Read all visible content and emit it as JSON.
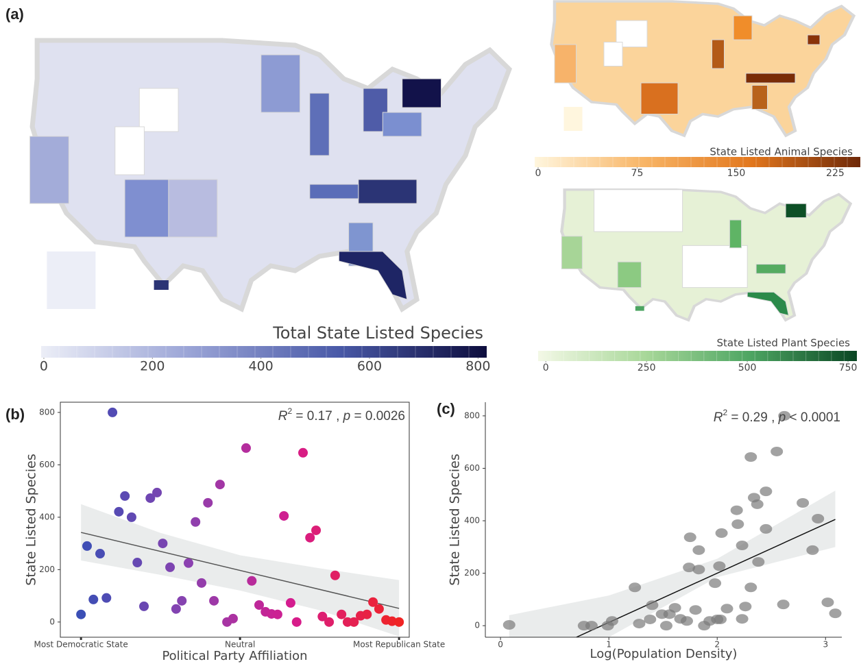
{
  "chart_data": [
    {
      "type": "colorbar",
      "label": "(a)",
      "title": "Total State Listed Species",
      "xlim": [
        -5,
        816
      ],
      "xticks": [
        0,
        200,
        400,
        600,
        800
      ],
      "colors": [
        "#eceef7",
        "#9aa4d6",
        "#4a5aa8",
        "#0d0d3d"
      ]
    },
    {
      "type": "colorbar",
      "title": "State Listed Animal Species",
      "xlim": [
        -2.6,
        244
      ],
      "xticks": [
        0,
        75,
        150,
        225
      ],
      "colors": [
        "#fff6de",
        "#f8b566",
        "#e2771d",
        "#6e2808"
      ]
    },
    {
      "type": "colorbar",
      "title": "State Listed Plant Species",
      "xlim": [
        -19,
        772
      ],
      "xticks": [
        0,
        250,
        500,
        750
      ],
      "colors": [
        "#f3f8e6",
        "#a9d89a",
        "#4da562",
        "#0a4623"
      ]
    },
    {
      "type": "scatter",
      "label": "(b)",
      "ylabel": "State Listed Species",
      "xlabel": "Political Party Affiliation",
      "annotation": [
        "R",
        "2",
        " = 0.17 , ",
        "p",
        " = 0.0026"
      ],
      "xlim": [
        -0.065,
        1.032
      ],
      "ylim": [
        -58,
        839
      ],
      "xticks": [
        {
          "value": 0,
          "label": "Most Democratic State"
        },
        {
          "value": 0.5,
          "label": "Neutral"
        },
        {
          "value": 1,
          "label": "Most Republican State"
        }
      ],
      "yticks": [
        0,
        200,
        400,
        600,
        800
      ],
      "color_scale": [
        "#3b4fb5",
        "#8a42b0",
        "#d61c8e",
        "#f02424"
      ],
      "x": [
        0,
        0.019,
        0.039,
        0.06,
        0.08,
        0.099,
        0.119,
        0.138,
        0.159,
        0.177,
        0.198,
        0.218,
        0.239,
        0.257,
        0.28,
        0.299,
        0.317,
        0.338,
        0.36,
        0.379,
        0.399,
        0.418,
        0.437,
        0.459,
        0.478,
        0.519,
        0.537,
        0.56,
        0.58,
        0.599,
        0.618,
        0.638,
        0.659,
        0.678,
        0.698,
        0.72,
        0.739,
        0.759,
        0.78,
        0.799,
        0.819,
        0.838,
        0.858,
        0.879,
        0.899,
        0.918,
        0.937,
        0.959,
        0.978,
        1
      ],
      "values": [
        29,
        290,
        86,
        261,
        92,
        800,
        421,
        481,
        400,
        227,
        60,
        473,
        494,
        300,
        209,
        50,
        81,
        225,
        382,
        149,
        455,
        81,
        525,
        0,
        13,
        664,
        157,
        65,
        39,
        31,
        29,
        405,
        73,
        0,
        646,
        322,
        350,
        21,
        0,
        178,
        29,
        0,
        0,
        24,
        29,
        76,
        50,
        8,
        3,
        0
      ],
      "fit": {
        "x": [
          0,
          1
        ],
        "y": [
          342,
          52
        ]
      },
      "band": {
        "x": [
          0,
          0.25,
          0.5,
          0.75,
          1
        ],
        "upper": [
          450,
          340,
          255,
          205,
          160
        ],
        "lower": [
          235,
          180,
          120,
          45,
          -55
        ]
      }
    },
    {
      "type": "scatter",
      "label": "(c)",
      "ylabel": "State Listed Species",
      "xlabel": "Log(Population Density)",
      "annotation": [
        "R",
        "2",
        " = 0.29 , ",
        "p",
        " < 0.0001"
      ],
      "xlim": [
        -0.14,
        3.15
      ],
      "ylim": [
        -44,
        852
      ],
      "xticks": [
        0,
        1,
        2,
        3
      ],
      "yticks": [
        0,
        200,
        400,
        600,
        800
      ],
      "color": "#7a7a7a",
      "x": [
        0.08,
        0.77,
        0.84,
        0.99,
        1.03,
        1.24,
        1.28,
        1.38,
        1.4,
        1.49,
        1.53,
        1.56,
        1.61,
        1.66,
        1.72,
        1.74,
        1.75,
        1.8,
        1.83,
        1.83,
        1.88,
        1.93,
        1.98,
        2,
        2.02,
        2.03,
        2.04,
        2.09,
        2.18,
        2.19,
        2.23,
        2.23,
        2.26,
        2.31,
        2.31,
        2.34,
        2.37,
        2.38,
        2.45,
        2.45,
        2.55,
        2.61,
        2.62,
        2.79,
        2.88,
        2.93,
        3.02,
        3.09
      ],
      "values": [
        3,
        0,
        0,
        0,
        18,
        146,
        8,
        24,
        78,
        44,
        0,
        44,
        68,
        26,
        18,
        222,
        337,
        60,
        214,
        288,
        0,
        18,
        162,
        24,
        227,
        24,
        353,
        65,
        440,
        387,
        26,
        306,
        73,
        643,
        146,
        488,
        463,
        243,
        512,
        369,
        664,
        81,
        800,
        468,
        288,
        408,
        89,
        47
      ],
      "fit": {
        "x": [
          0.7,
          3.09
        ],
        "y": [
          -44,
          405
        ]
      },
      "band": {
        "x": [
          0.08,
          1,
          2,
          3.09
        ],
        "upper": [
          40,
          115,
          255,
          515
        ],
        "lower": [
          -44,
          -44,
          185,
          300
        ]
      }
    }
  ]
}
